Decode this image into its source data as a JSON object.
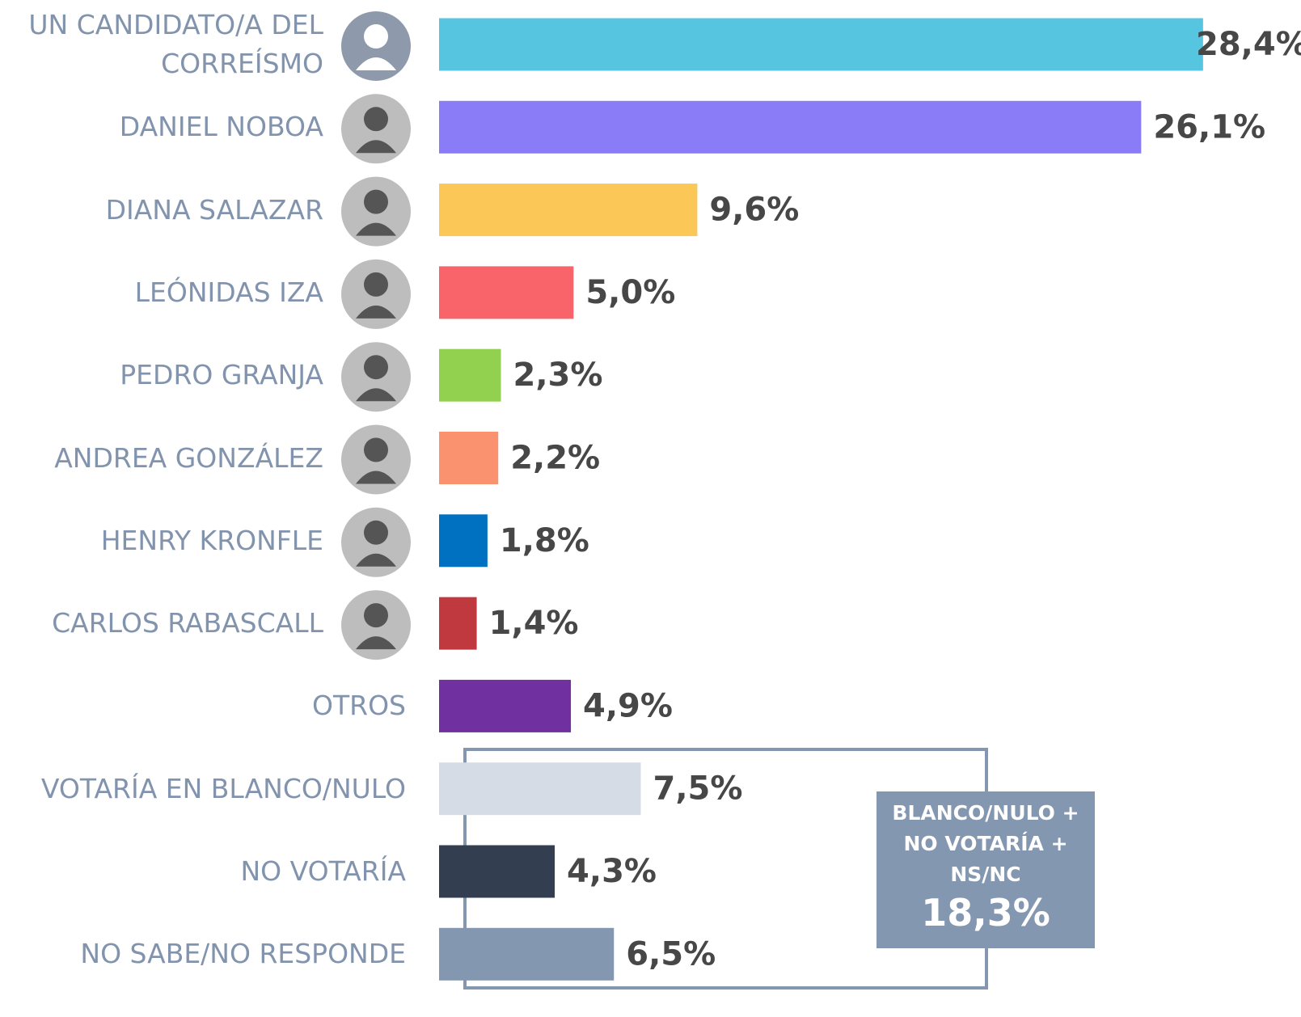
{
  "chart_data": {
    "type": "bar",
    "orientation": "horizontal",
    "categories": [
      "UN CANDIDATO/A DEL CORREÍSMO",
      "DANIEL NOBOA",
      "DIANA SALAZAR",
      "LEÓNIDAS IZA",
      "PEDRO GRANJA",
      "ANDREA GONZÁLEZ",
      "HENRY KRONFLE",
      "CARLOS RABASCALL",
      "OTROS",
      "VOTARÍA EN BLANCO/NULO",
      "NO VOTARÍA",
      "NO SABE/NO RESPONDE"
    ],
    "values": [
      28.4,
      26.1,
      9.6,
      5.0,
      2.3,
      2.2,
      1.8,
      1.4,
      4.9,
      7.5,
      4.3,
      6.5
    ],
    "value_labels": [
      "28,4%",
      "26,1%",
      "9,6%",
      "5,0%",
      "2,3%",
      "2,2%",
      "1,8%",
      "1,4%",
      "4,9%",
      "7,5%",
      "4,3%",
      "6,5%"
    ],
    "colors": [
      "#56c5e0",
      "#8a7cf6",
      "#fbc857",
      "#f9646a",
      "#92d050",
      "#fa9270",
      "#0070c0",
      "#c0393f",
      "#7030a0",
      "#d6dce5",
      "#333f50",
      "#8497b0"
    ],
    "annotation": {
      "text": "BLANCO/NULO + NO VOTARÍA + NS/NC",
      "value": 18.3,
      "value_label": "18,3%"
    }
  }
}
